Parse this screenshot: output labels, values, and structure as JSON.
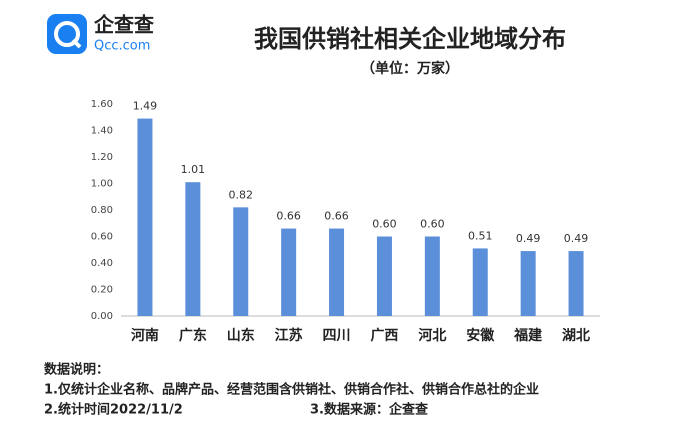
{
  "logo": {
    "name": "企查查",
    "domain": "Qcc.com"
  },
  "chart_data": {
    "type": "bar",
    "title": "我国供销社相关企业地域分布",
    "subtitle": "（单位：万家）",
    "categories": [
      "河南",
      "广东",
      "山东",
      "江苏",
      "四川",
      "广西",
      "河北",
      "安徽",
      "福建",
      "湖北"
    ],
    "values": [
      1.49,
      1.01,
      0.82,
      0.66,
      0.66,
      0.6,
      0.6,
      0.51,
      0.49,
      0.49
    ],
    "value_labels": [
      "1.49",
      "1.01",
      "0.82",
      "0.66",
      "0.66",
      "0.60",
      "0.60",
      "0.51",
      "0.49",
      "0.49"
    ],
    "color": "#5b8fd9",
    "ylim": [
      0,
      1.6
    ],
    "yticks": [
      {
        "value": 0,
        "label": "0.00"
      },
      {
        "value": 0.2,
        "label": "0.20"
      },
      {
        "value": 0.4,
        "label": "0.40"
      },
      {
        "value": 0.6,
        "label": "0.60"
      },
      {
        "value": 0.8,
        "label": "0.80"
      },
      {
        "value": 1,
        "label": "1.00"
      },
      {
        "value": 1.2,
        "label": "1.20"
      },
      {
        "value": 1.4,
        "label": "1.40"
      },
      {
        "value": 1.6,
        "label": "1.60"
      }
    ]
  },
  "notes": {
    "heading": "数据说明：",
    "line1": "1.仅统计企业名称、品牌产品、经营范围含供销社、供销合作社、供销合作总社的企业",
    "line2a": "2.统计时间2022/11/2",
    "line2b": "3.数据来源：企查查"
  }
}
